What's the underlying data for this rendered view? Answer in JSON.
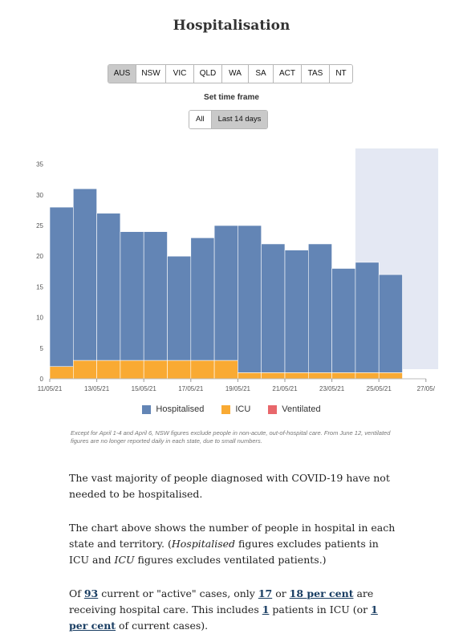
{
  "title": "Hospitalisation",
  "state_buttons": [
    {
      "label": "AUS",
      "active": true
    },
    {
      "label": "NSW",
      "active": false
    },
    {
      "label": "VIC",
      "active": false
    },
    {
      "label": "QLD",
      "active": false
    },
    {
      "label": "WA",
      "active": false
    },
    {
      "label": "SA",
      "active": false
    },
    {
      "label": "ACT",
      "active": false
    },
    {
      "label": "TAS",
      "active": false
    },
    {
      "label": "NT",
      "active": false
    }
  ],
  "timeframe": {
    "label": "Set time frame",
    "buttons": [
      {
        "label": "All",
        "active": false
      },
      {
        "label": "Last 14 days",
        "active": true
      }
    ]
  },
  "chart_data": {
    "type": "bar",
    "stacked": true,
    "categories": [
      "11/05/21",
      "12/05/21",
      "13/05/21",
      "14/05/21",
      "15/05/21",
      "16/05/21",
      "17/05/21",
      "18/05/21",
      "19/05/21",
      "20/05/21",
      "21/05/21",
      "22/05/21",
      "23/05/21",
      "24/05/21",
      "25/05/21"
    ],
    "x_tick_labels": [
      "11/05/21",
      "13/05/21",
      "15/05/21",
      "17/05/21",
      "19/05/21",
      "21/05/21",
      "23/05/21",
      "25/05/21",
      "27/05/"
    ],
    "series": [
      {
        "name": "Hospitalised",
        "color": "#6385b5",
        "values": [
          26,
          28,
          24,
          21,
          21,
          17,
          20,
          22,
          24,
          21,
          20,
          21,
          17,
          18,
          16
        ]
      },
      {
        "name": "ICU",
        "color": "#f9aa33",
        "values": [
          2,
          3,
          3,
          3,
          3,
          3,
          3,
          3,
          1,
          1,
          1,
          1,
          1,
          1,
          1
        ]
      },
      {
        "name": "Ventilated",
        "color": "#e8676b",
        "values": [
          0,
          0,
          0,
          0,
          0,
          0,
          0,
          0,
          0,
          0,
          0,
          0,
          0,
          0,
          0
        ]
      }
    ],
    "y_ticks": [
      0,
      5,
      10,
      15,
      20,
      25,
      30,
      35
    ],
    "ylim": [
      0,
      36
    ],
    "shaded_last_days": 2,
    "shade_color": "#e4e8f3",
    "grid": false,
    "legend_position": "bottom"
  },
  "note": "Except for April 1-4 and April 6, NSW figures exclude people in non-acute, out-of-hospital care. From June 12, ventilated figures are no longer reported daily in each state, due to small numbers.",
  "prose": {
    "p1": "The vast majority of people diagnosed with COVID-19 have not needed to be hospitalised.",
    "p2_a": "The chart above shows the number of people in hospital in each state and territory. (",
    "p2_b": "Hospitalised",
    "p2_c": " figures excludes patients in ICU and ",
    "p2_d": "ICU",
    "p2_e": " figures excludes ventilated patients.)",
    "p3_a": "Of ",
    "active_cases": "93",
    "p3_b": " current or \"active\" cases, only ",
    "hospital_cases": "17",
    "p3_c": " or ",
    "hospital_pct": "18 per cent",
    "p3_d": " are receiving hospital care. This includes ",
    "icu_cases": "1",
    "p3_e": " patients in ICU (or ",
    "icu_pct": "1 per cent",
    "p3_f": " of current cases)."
  }
}
